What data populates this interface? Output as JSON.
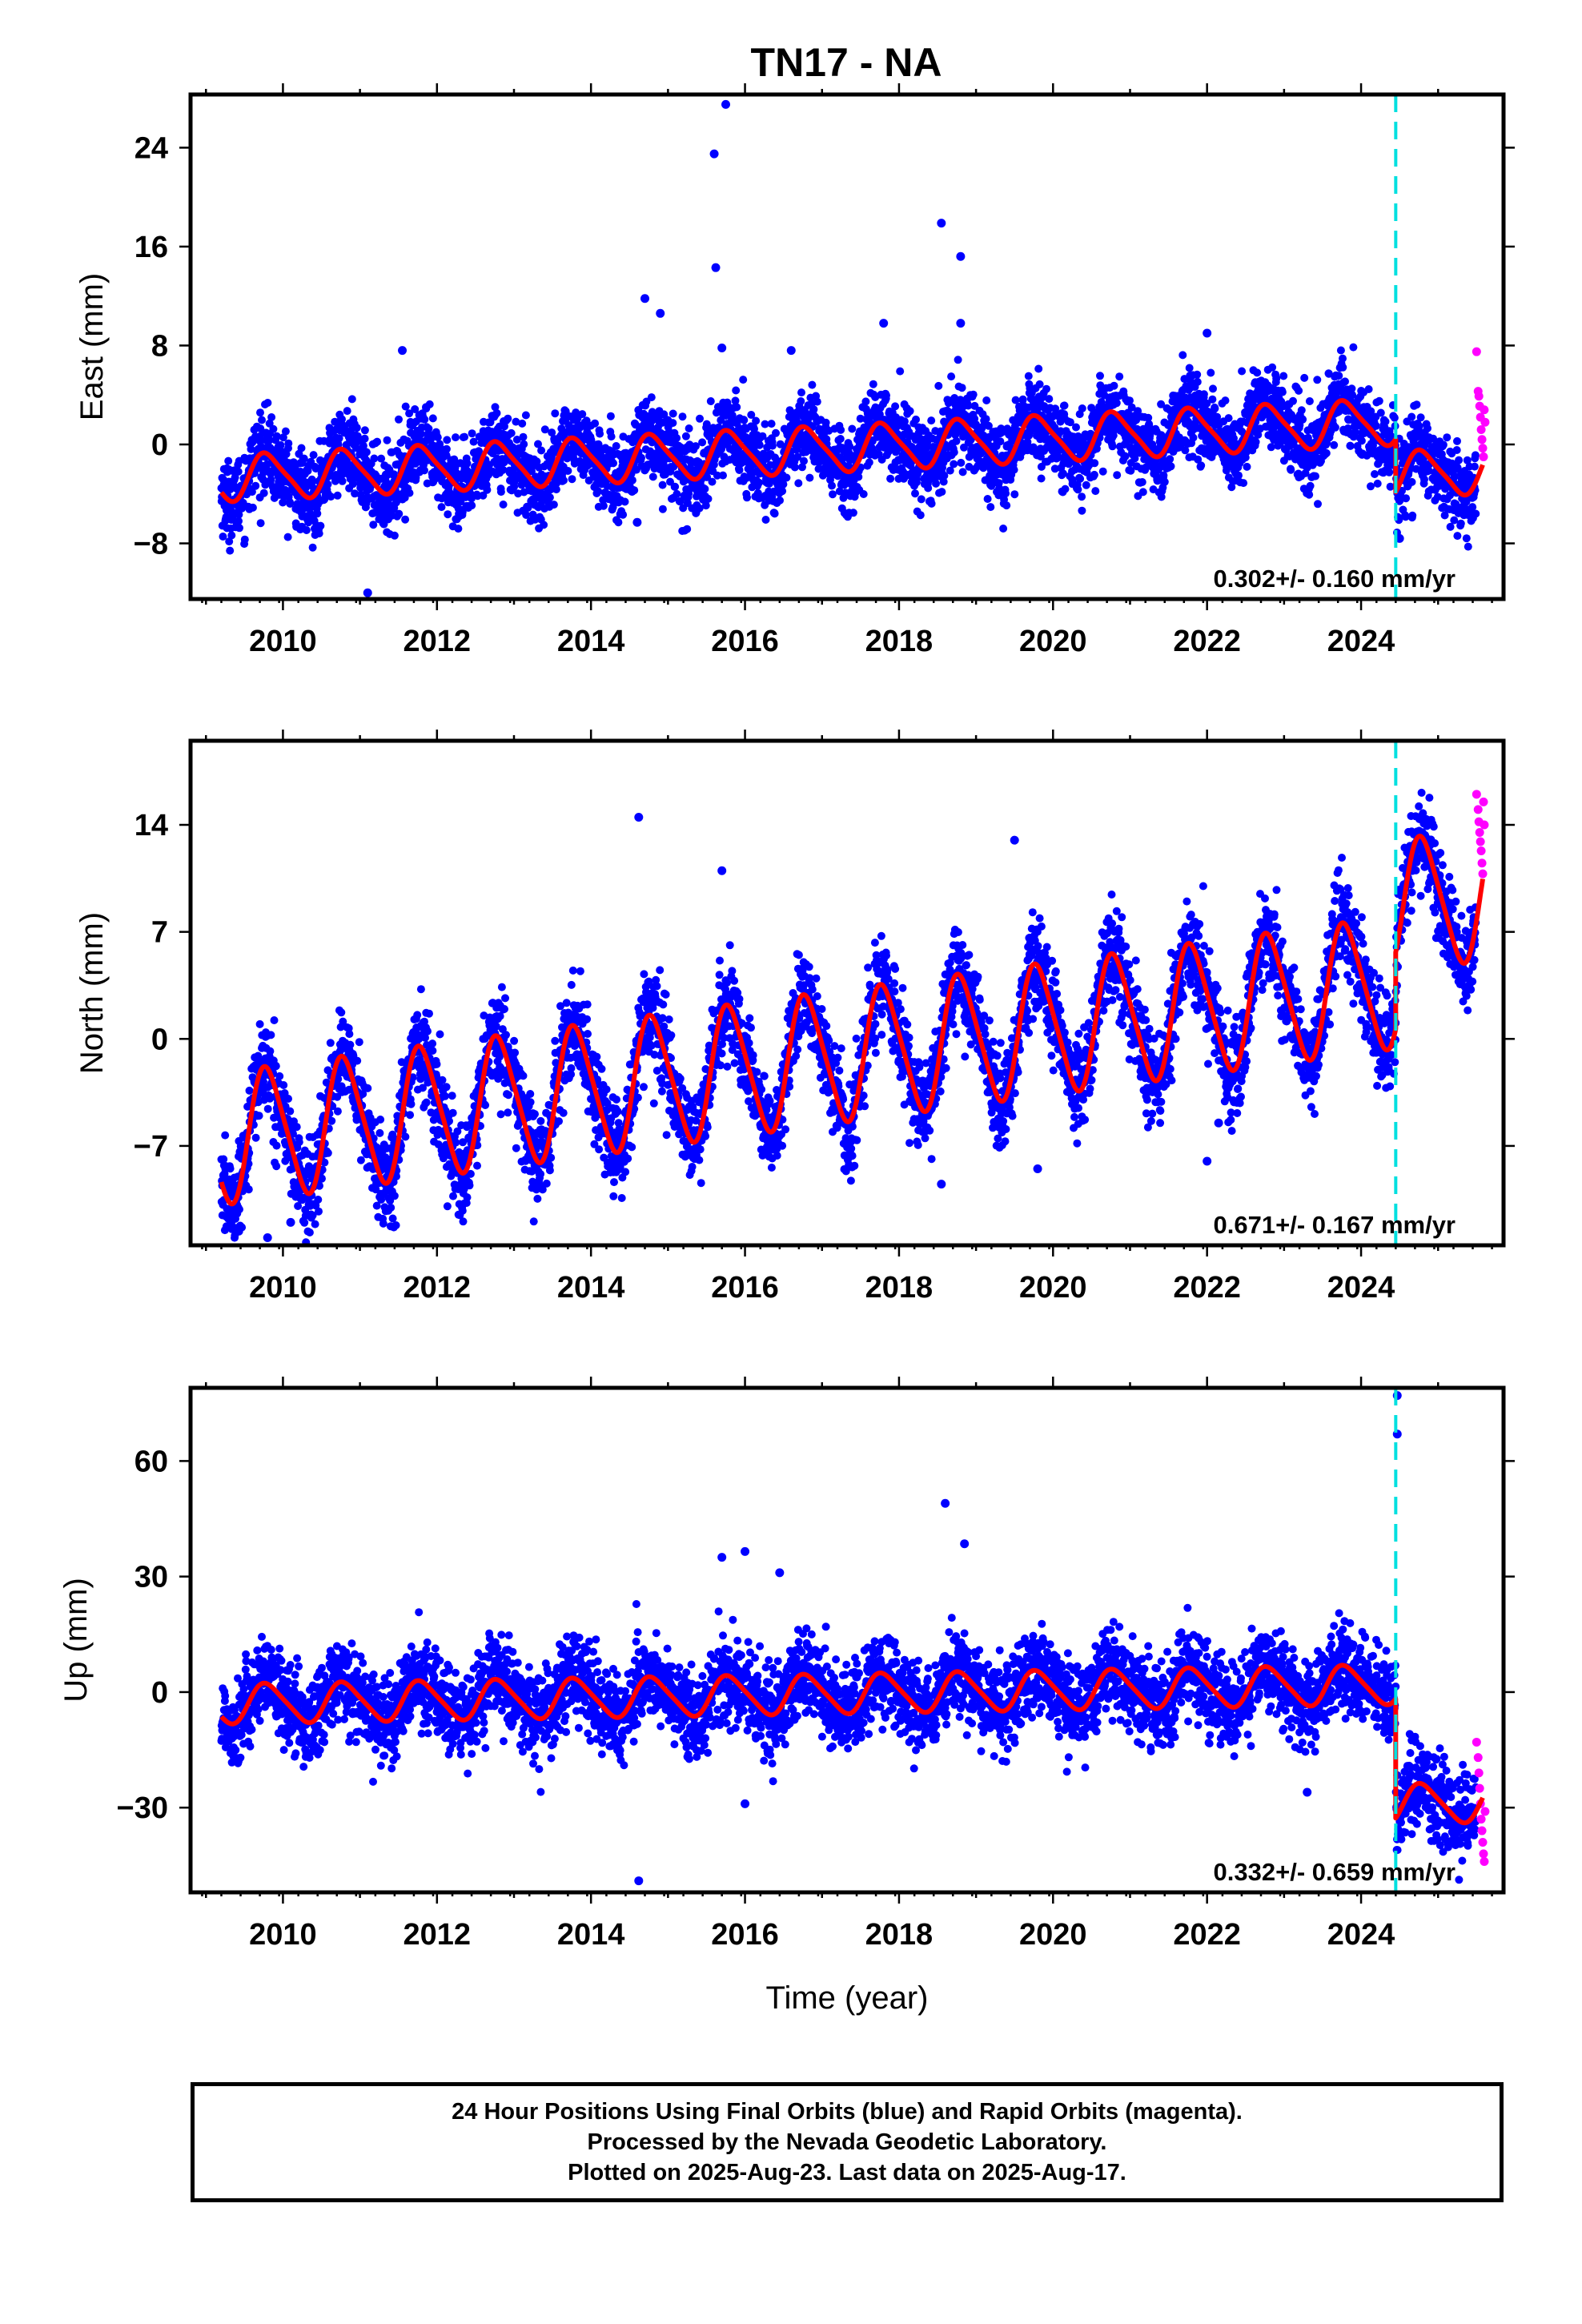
{
  "title": "TN17 - NA",
  "colors": {
    "final_orbits": "#0000ff",
    "rapid_orbits": "#ff00ff",
    "model": "#ff0000",
    "offset_line": "#00e0e0",
    "frame": "#000000"
  },
  "footer": {
    "line1": "24 Hour Positions Using Final Orbits (blue) and Rapid Orbits (magenta).",
    "line2": "Processed by the Nevada Geodetic Laboratory.",
    "line3": "Plotted on 2025-Aug-23. Last data on 2025-Aug-17."
  },
  "chart_data": [
    {
      "type": "scatter",
      "panel": "east",
      "title": "TN17 - NA",
      "xlabel": "",
      "ylabel": "East (mm)",
      "xlim": [
        2008.8,
        2025.85
      ],
      "ylim": [
        -12.5,
        28.3
      ],
      "xticks": [
        2010,
        2012,
        2014,
        2016,
        2018,
        2020,
        2022,
        2024
      ],
      "yticks": [
        -8,
        0,
        8,
        16,
        24
      ],
      "offset_epoch": 2024.45,
      "rate_label": "0.302+/- 0.160 mm/yr",
      "model": {
        "rate": 0.302,
        "before": {
          "ref": 2017.0,
          "intercept": -0.4
        },
        "after": {
          "jump": -4.3
        },
        "annual_amplitude": 1.8,
        "annual_phase": 0.55,
        "semiannual_amplitude": 0.35,
        "scatter_sigma": 1.6
      },
      "outliers": [
        [
          2015.75,
          27.5
        ],
        [
          2015.6,
          23.5
        ],
        [
          2015.62,
          14.3
        ],
        [
          2015.7,
          7.8
        ],
        [
          2018.55,
          17.9
        ],
        [
          2018.8,
          15.2
        ],
        [
          2018.8,
          9.8
        ],
        [
          2017.8,
          9.8
        ],
        [
          2014.7,
          11.8
        ],
        [
          2014.9,
          10.6
        ],
        [
          2022.0,
          9.0
        ],
        [
          2016.6,
          7.6
        ],
        [
          2011.55,
          7.6
        ],
        [
          2014.6,
          -6.3
        ],
        [
          2011.1,
          -12.0
        ],
        [
          2024.5,
          -7.6
        ]
      ],
      "rapid_points": [
        [
          2025.5,
          7.5
        ],
        [
          2025.52,
          4.3
        ],
        [
          2025.53,
          3.9
        ],
        [
          2025.54,
          3.1
        ],
        [
          2025.55,
          2.2
        ],
        [
          2025.56,
          1.2
        ],
        [
          2025.57,
          0.4
        ],
        [
          2025.58,
          -0.3
        ],
        [
          2025.59,
          -1.0
        ],
        [
          2025.6,
          2.8
        ],
        [
          2025.61,
          1.8
        ]
      ]
    },
    {
      "type": "scatter",
      "panel": "north",
      "xlabel": "",
      "ylabel": "North (mm)",
      "xlim": [
        2008.8,
        2025.85
      ],
      "ylim": [
        -13.5,
        19.5
      ],
      "xticks": [
        2010,
        2012,
        2014,
        2016,
        2018,
        2020,
        2022,
        2024
      ],
      "yticks": [
        -7,
        0,
        7,
        14
      ],
      "offset_epoch": 2024.45,
      "rate_label": "0.671+/- 0.167 mm/yr",
      "model": {
        "rate": 0.671,
        "before": {
          "ref": 2017.0,
          "intercept": -1.3
        },
        "after": {
          "jump": 5.0
        },
        "annual_amplitude": 4.2,
        "annual_phase": 0.55,
        "semiannual_amplitude": 0.6,
        "scatter_sigma": 1.5
      },
      "outliers": [
        [
          2014.62,
          14.5
        ],
        [
          2015.7,
          11.0
        ],
        [
          2019.5,
          13.0
        ],
        [
          2018.55,
          -9.5
        ],
        [
          2019.8,
          -8.5
        ],
        [
          2022.0,
          -8.0
        ],
        [
          2022.15,
          -5.5
        ],
        [
          2009.8,
          -13.0
        ],
        [
          2010.1,
          -12.0
        ]
      ],
      "rapid_points": [
        [
          2025.5,
          16.0
        ],
        [
          2025.52,
          15.0
        ],
        [
          2025.53,
          14.2
        ],
        [
          2025.54,
          13.5
        ],
        [
          2025.55,
          12.9
        ],
        [
          2025.56,
          12.3
        ],
        [
          2025.57,
          11.5
        ],
        [
          2025.58,
          10.8
        ],
        [
          2025.59,
          15.5
        ],
        [
          2025.6,
          14.0
        ]
      ]
    },
    {
      "type": "scatter",
      "panel": "up",
      "xlabel": "Time (year)",
      "ylabel": "Up (mm)",
      "xlim": [
        2008.8,
        2025.85
      ],
      "ylim": [
        -52,
        79
      ],
      "xticks": [
        2010,
        2012,
        2014,
        2016,
        2018,
        2020,
        2022,
        2024
      ],
      "yticks": [
        -30,
        0,
        30,
        60
      ],
      "offset_epoch": 2024.45,
      "rate_label": "0.332+/- 0.659 mm/yr",
      "model": {
        "rate": 0.332,
        "before": {
          "ref": 2017.0,
          "intercept": -0.5
        },
        "after": {
          "jump": -31.0
        },
        "annual_amplitude": 5.0,
        "annual_phase": 0.55,
        "semiannual_amplitude": 0.8,
        "scatter_sigma": 5.5
      },
      "outliers": [
        [
          2024.47,
          77.0
        ],
        [
          2024.47,
          67.0
        ],
        [
          2018.6,
          49.0
        ],
        [
          2018.85,
          38.5
        ],
        [
          2016.0,
          36.5
        ],
        [
          2015.7,
          35.0
        ],
        [
          2014.62,
          -49.0
        ],
        [
          2016.0,
          -29.0
        ],
        [
          2023.3,
          -26.0
        ],
        [
          2016.45,
          31.0
        ]
      ],
      "rapid_points": [
        [
          2025.5,
          -13.0
        ],
        [
          2025.52,
          -17.0
        ],
        [
          2025.53,
          -21.0
        ],
        [
          2025.54,
          -25.0
        ],
        [
          2025.55,
          -29.0
        ],
        [
          2025.56,
          -33.0
        ],
        [
          2025.57,
          -36.0
        ],
        [
          2025.58,
          -39.0
        ],
        [
          2025.59,
          -42.0
        ],
        [
          2025.6,
          -44.0
        ],
        [
          2025.61,
          -31.0
        ]
      ]
    }
  ]
}
